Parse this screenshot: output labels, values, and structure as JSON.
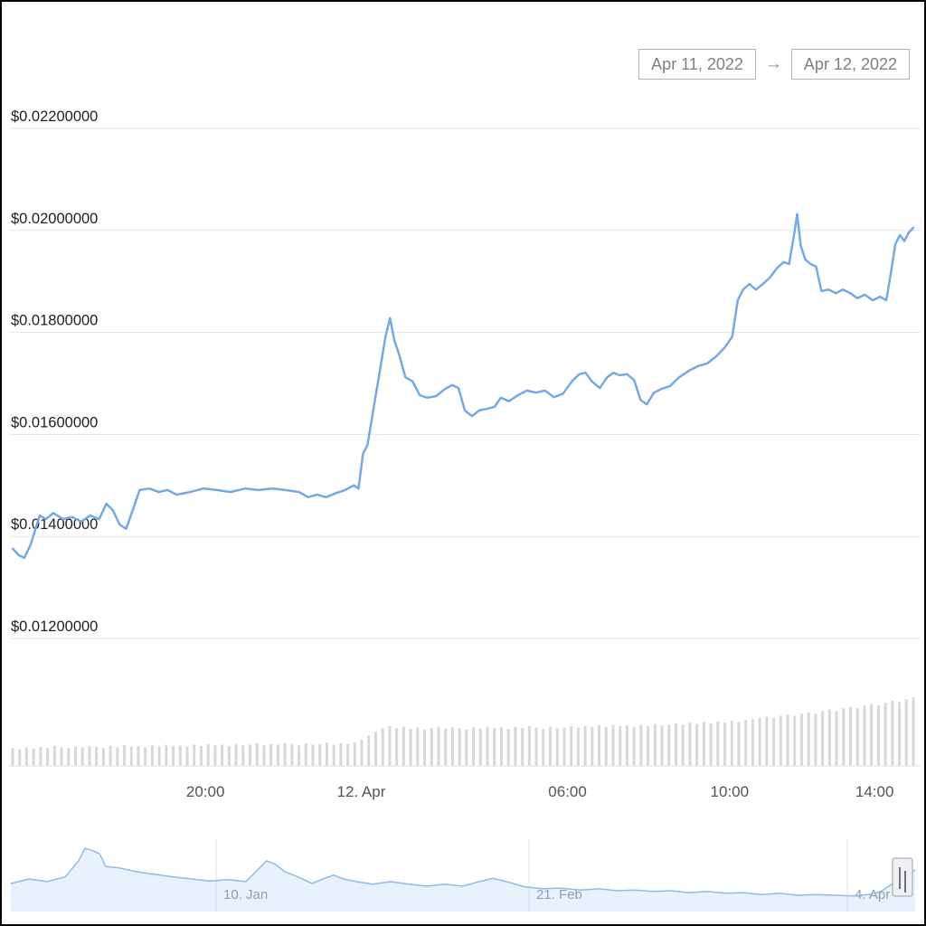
{
  "header": {
    "date_from": "Apr 11, 2022",
    "arrow": "→",
    "date_to": "Apr 12, 2022"
  },
  "chart_data": {
    "type": "line",
    "description": "Price line chart with volume bars and range navigator",
    "colors": {
      "price_line": "#73aae4",
      "volume_bar": "#d8d8d8",
      "grid_line": "#e6e6e6",
      "axis_line": "#e0e0e0",
      "y_label": "#1f1f1f",
      "x_label": "#545454",
      "nav_line": "#8ebbe8",
      "nav_fill": "rgba(124,181,236,0.18)",
      "nav_label": "#999999",
      "nav_handle_fill": "#eef0f4",
      "nav_handle_stroke": "#9aa0a6",
      "nav_handle_grip": "#6f7276"
    },
    "y_axis": {
      "ticks": [
        {
          "label": "$0.02200000",
          "value": 0.022
        },
        {
          "label": "$0.02000000",
          "value": 0.02
        },
        {
          "label": "$0.01800000",
          "value": 0.018
        },
        {
          "label": "$0.01600000",
          "value": 0.016
        },
        {
          "label": "$0.01400000",
          "value": 0.014
        },
        {
          "label": "$0.01200000",
          "value": 0.012
        }
      ],
      "ylim": [
        0.012,
        0.022
      ]
    },
    "x_axis": {
      "ticks": [
        {
          "label": "20:00",
          "pos": 0.214
        },
        {
          "label": "12. Apr",
          "pos": 0.387
        },
        {
          "label": "06:00",
          "pos": 0.616
        },
        {
          "label": "10:00",
          "pos": 0.796
        },
        {
          "label": "14:00",
          "pos": 0.957
        }
      ]
    },
    "price_series": {
      "name": "price-usd",
      "points": [
        [
          0.0,
          0.01376
        ],
        [
          0.007,
          0.01363
        ],
        [
          0.013,
          0.01358
        ],
        [
          0.02,
          0.01384
        ],
        [
          0.03,
          0.01441
        ],
        [
          0.037,
          0.01434
        ],
        [
          0.045,
          0.01446
        ],
        [
          0.056,
          0.01434
        ],
        [
          0.066,
          0.01438
        ],
        [
          0.076,
          0.01429
        ],
        [
          0.086,
          0.01441
        ],
        [
          0.096,
          0.01434
        ],
        [
          0.104,
          0.01464
        ],
        [
          0.111,
          0.01452
        ],
        [
          0.119,
          0.01423
        ],
        [
          0.126,
          0.01415
        ],
        [
          0.134,
          0.01455
        ],
        [
          0.141,
          0.01491
        ],
        [
          0.152,
          0.01494
        ],
        [
          0.162,
          0.01487
        ],
        [
          0.172,
          0.01491
        ],
        [
          0.182,
          0.01482
        ],
        [
          0.197,
          0.01487
        ],
        [
          0.212,
          0.01494
        ],
        [
          0.227,
          0.01491
        ],
        [
          0.242,
          0.01487
        ],
        [
          0.258,
          0.01494
        ],
        [
          0.273,
          0.01491
        ],
        [
          0.288,
          0.01494
        ],
        [
          0.303,
          0.01491
        ],
        [
          0.318,
          0.01487
        ],
        [
          0.328,
          0.01477
        ],
        [
          0.338,
          0.01482
        ],
        [
          0.348,
          0.01477
        ],
        [
          0.359,
          0.01485
        ],
        [
          0.369,
          0.01491
        ],
        [
          0.379,
          0.015
        ],
        [
          0.384,
          0.01494
        ],
        [
          0.389,
          0.01562
        ],
        [
          0.394,
          0.01579
        ],
        [
          0.399,
          0.01633
        ],
        [
          0.404,
          0.01686
        ],
        [
          0.409,
          0.01739
        ],
        [
          0.414,
          0.01792
        ],
        [
          0.419,
          0.01828
        ],
        [
          0.424,
          0.01783
        ],
        [
          0.429,
          0.01757
        ],
        [
          0.436,
          0.01712
        ],
        [
          0.444,
          0.01704
        ],
        [
          0.452,
          0.01677
        ],
        [
          0.46,
          0.01672
        ],
        [
          0.47,
          0.01675
        ],
        [
          0.48,
          0.01689
        ],
        [
          0.488,
          0.01697
        ],
        [
          0.495,
          0.01691
        ],
        [
          0.502,
          0.01647
        ],
        [
          0.51,
          0.01636
        ],
        [
          0.518,
          0.01647
        ],
        [
          0.526,
          0.0165
        ],
        [
          0.535,
          0.01654
        ],
        [
          0.542,
          0.01672
        ],
        [
          0.551,
          0.01665
        ],
        [
          0.561,
          0.01677
        ],
        [
          0.571,
          0.01686
        ],
        [
          0.581,
          0.01682
        ],
        [
          0.591,
          0.01686
        ],
        [
          0.601,
          0.01673
        ],
        [
          0.611,
          0.0168
        ],
        [
          0.621,
          0.01704
        ],
        [
          0.629,
          0.01718
        ],
        [
          0.636,
          0.01721
        ],
        [
          0.643,
          0.01704
        ],
        [
          0.652,
          0.01691
        ],
        [
          0.66,
          0.01712
        ],
        [
          0.667,
          0.01721
        ],
        [
          0.674,
          0.01716
        ],
        [
          0.682,
          0.01718
        ],
        [
          0.69,
          0.01707
        ],
        [
          0.697,
          0.01668
        ],
        [
          0.704,
          0.01659
        ],
        [
          0.712,
          0.01682
        ],
        [
          0.72,
          0.01689
        ],
        [
          0.73,
          0.01695
        ],
        [
          0.74,
          0.01712
        ],
        [
          0.751,
          0.01725
        ],
        [
          0.761,
          0.01734
        ],
        [
          0.771,
          0.01739
        ],
        [
          0.781,
          0.01753
        ],
        [
          0.791,
          0.01771
        ],
        [
          0.799,
          0.01792
        ],
        [
          0.805,
          0.01863
        ],
        [
          0.811,
          0.01884
        ],
        [
          0.818,
          0.01895
        ],
        [
          0.825,
          0.01884
        ],
        [
          0.833,
          0.01895
        ],
        [
          0.841,
          0.01908
        ],
        [
          0.848,
          0.01925
        ],
        [
          0.856,
          0.01938
        ],
        [
          0.862,
          0.01934
        ],
        [
          0.868,
          0.01996
        ],
        [
          0.871,
          0.02032
        ],
        [
          0.875,
          0.0197
        ],
        [
          0.88,
          0.01943
        ],
        [
          0.886,
          0.01934
        ],
        [
          0.892,
          0.01929
        ],
        [
          0.898,
          0.01881
        ],
        [
          0.906,
          0.01884
        ],
        [
          0.914,
          0.01877
        ],
        [
          0.922,
          0.01884
        ],
        [
          0.93,
          0.01877
        ],
        [
          0.938,
          0.01867
        ],
        [
          0.946,
          0.01874
        ],
        [
          0.955,
          0.01863
        ],
        [
          0.963,
          0.0187
        ],
        [
          0.97,
          0.01863
        ],
        [
          0.975,
          0.01916
        ],
        [
          0.98,
          0.01973
        ],
        [
          0.985,
          0.01991
        ],
        [
          0.99,
          0.01979
        ],
        [
          0.995,
          0.01996
        ],
        [
          1.0,
          0.02005
        ]
      ]
    },
    "volume_series": {
      "name": "volume",
      "values": [
        0.26,
        0.24,
        0.27,
        0.25,
        0.28,
        0.26,
        0.29,
        0.27,
        0.26,
        0.28,
        0.27,
        0.29,
        0.28,
        0.26,
        0.29,
        0.27,
        0.3,
        0.28,
        0.29,
        0.27,
        0.3,
        0.28,
        0.31,
        0.29,
        0.3,
        0.28,
        0.31,
        0.29,
        0.32,
        0.3,
        0.31,
        0.29,
        0.32,
        0.3,
        0.31,
        0.33,
        0.3,
        0.32,
        0.31,
        0.33,
        0.32,
        0.3,
        0.33,
        0.31,
        0.32,
        0.34,
        0.31,
        0.33,
        0.32,
        0.34,
        0.38,
        0.44,
        0.5,
        0.55,
        0.58,
        0.55,
        0.57,
        0.54,
        0.56,
        0.53,
        0.55,
        0.57,
        0.54,
        0.56,
        0.55,
        0.53,
        0.56,
        0.54,
        0.57,
        0.55,
        0.56,
        0.54,
        0.57,
        0.55,
        0.58,
        0.56,
        0.54,
        0.57,
        0.55,
        0.56,
        0.58,
        0.56,
        0.58,
        0.57,
        0.59,
        0.57,
        0.6,
        0.58,
        0.59,
        0.57,
        0.6,
        0.58,
        0.61,
        0.59,
        0.6,
        0.62,
        0.6,
        0.63,
        0.61,
        0.64,
        0.62,
        0.65,
        0.63,
        0.66,
        0.64,
        0.67,
        0.68,
        0.7,
        0.72,
        0.7,
        0.73,
        0.75,
        0.73,
        0.76,
        0.78,
        0.76,
        0.8,
        0.82,
        0.8,
        0.84,
        0.86,
        0.84,
        0.88,
        0.9,
        0.88,
        0.92,
        0.95,
        0.93,
        0.97,
        1.0
      ]
    },
    "navigator": {
      "labels": [
        {
          "label": "10. Jan",
          "pos": 0.227
        },
        {
          "label": "21. Feb",
          "pos": 0.573
        },
        {
          "label": "4. Apr",
          "pos": 0.925
        }
      ],
      "points": [
        [
          0.0,
          0.43
        ],
        [
          0.02,
          0.5
        ],
        [
          0.04,
          0.46
        ],
        [
          0.06,
          0.53
        ],
        [
          0.075,
          0.78
        ],
        [
          0.082,
          0.97
        ],
        [
          0.09,
          0.94
        ],
        [
          0.098,
          0.89
        ],
        [
          0.105,
          0.69
        ],
        [
          0.12,
          0.67
        ],
        [
          0.14,
          0.61
        ],
        [
          0.16,
          0.57
        ],
        [
          0.18,
          0.53
        ],
        [
          0.2,
          0.5
        ],
        [
          0.22,
          0.47
        ],
        [
          0.24,
          0.49
        ],
        [
          0.26,
          0.46
        ],
        [
          0.273,
          0.64
        ],
        [
          0.283,
          0.78
        ],
        [
          0.293,
          0.72
        ],
        [
          0.303,
          0.61
        ],
        [
          0.318,
          0.53
        ],
        [
          0.333,
          0.43
        ],
        [
          0.345,
          0.5
        ],
        [
          0.357,
          0.56
        ],
        [
          0.368,
          0.5
        ],
        [
          0.382,
          0.46
        ],
        [
          0.4,
          0.42
        ],
        [
          0.42,
          0.46
        ],
        [
          0.44,
          0.42
        ],
        [
          0.46,
          0.39
        ],
        [
          0.48,
          0.42
        ],
        [
          0.5,
          0.39
        ],
        [
          0.518,
          0.46
        ],
        [
          0.533,
          0.51
        ],
        [
          0.548,
          0.46
        ],
        [
          0.568,
          0.38
        ],
        [
          0.588,
          0.35
        ],
        [
          0.608,
          0.36
        ],
        [
          0.63,
          0.33
        ],
        [
          0.65,
          0.35
        ],
        [
          0.67,
          0.32
        ],
        [
          0.69,
          0.33
        ],
        [
          0.71,
          0.31
        ],
        [
          0.73,
          0.32
        ],
        [
          0.75,
          0.29
        ],
        [
          0.77,
          0.31
        ],
        [
          0.79,
          0.28
        ],
        [
          0.81,
          0.29
        ],
        [
          0.83,
          0.26
        ],
        [
          0.85,
          0.28
        ],
        [
          0.87,
          0.25
        ],
        [
          0.89,
          0.26
        ],
        [
          0.91,
          0.25
        ],
        [
          0.93,
          0.24
        ],
        [
          0.948,
          0.26
        ],
        [
          0.962,
          0.31
        ],
        [
          0.972,
          0.4
        ],
        [
          0.982,
          0.5
        ],
        [
          0.992,
          0.58
        ],
        [
          1.0,
          0.64
        ]
      ]
    }
  }
}
